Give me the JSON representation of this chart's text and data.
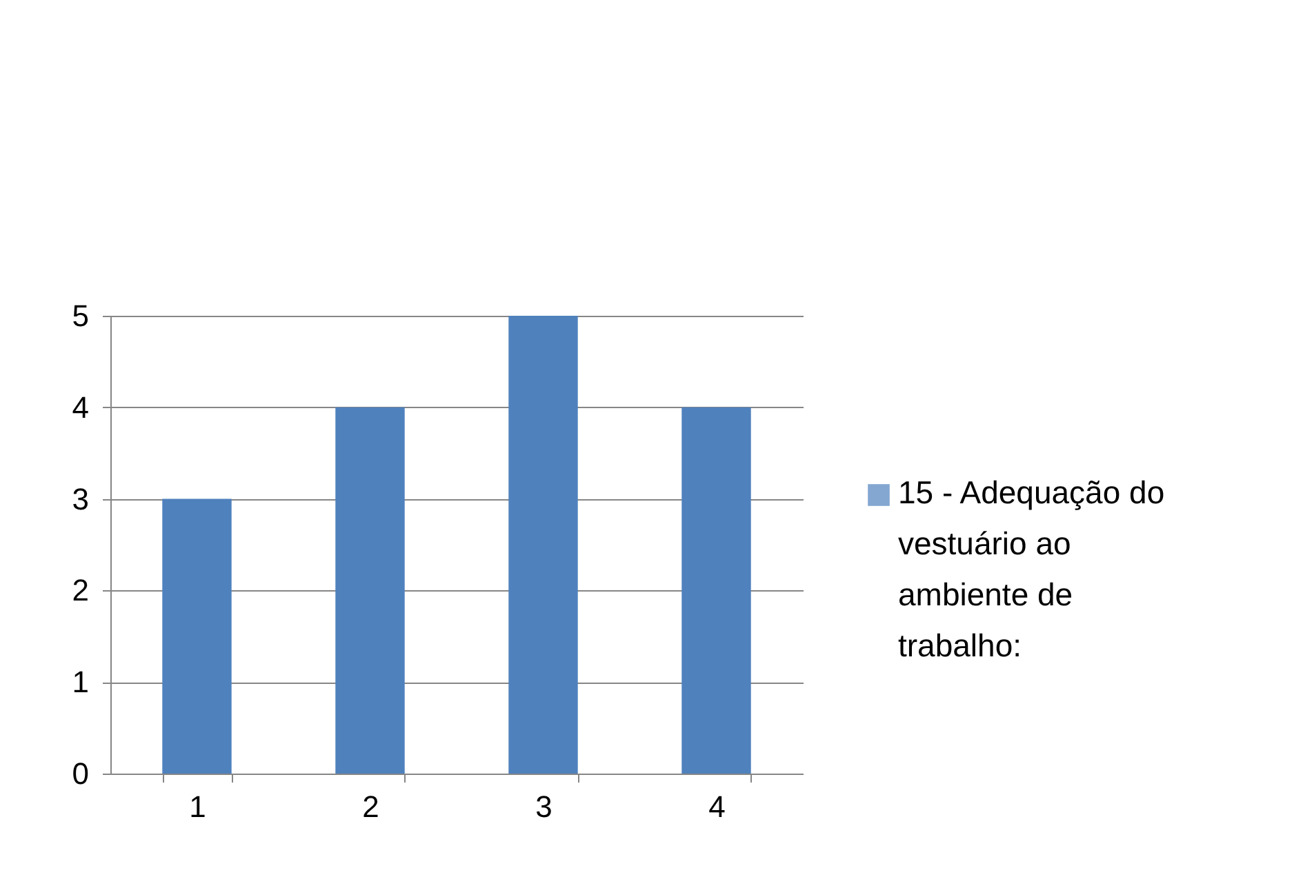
{
  "chart_data": {
    "type": "bar",
    "categories": [
      "1",
      "2",
      "3",
      "4"
    ],
    "series": [
      {
        "name": "15 - Adequação do vestuário ao ambiente de trabalho:",
        "color": "#4f81bd",
        "values": [
          3,
          4,
          5,
          4
        ]
      }
    ],
    "ylim": [
      0,
      5
    ],
    "yticks": [
      0,
      1,
      2,
      3,
      4,
      5
    ],
    "grid": "y",
    "legend": "right"
  }
}
